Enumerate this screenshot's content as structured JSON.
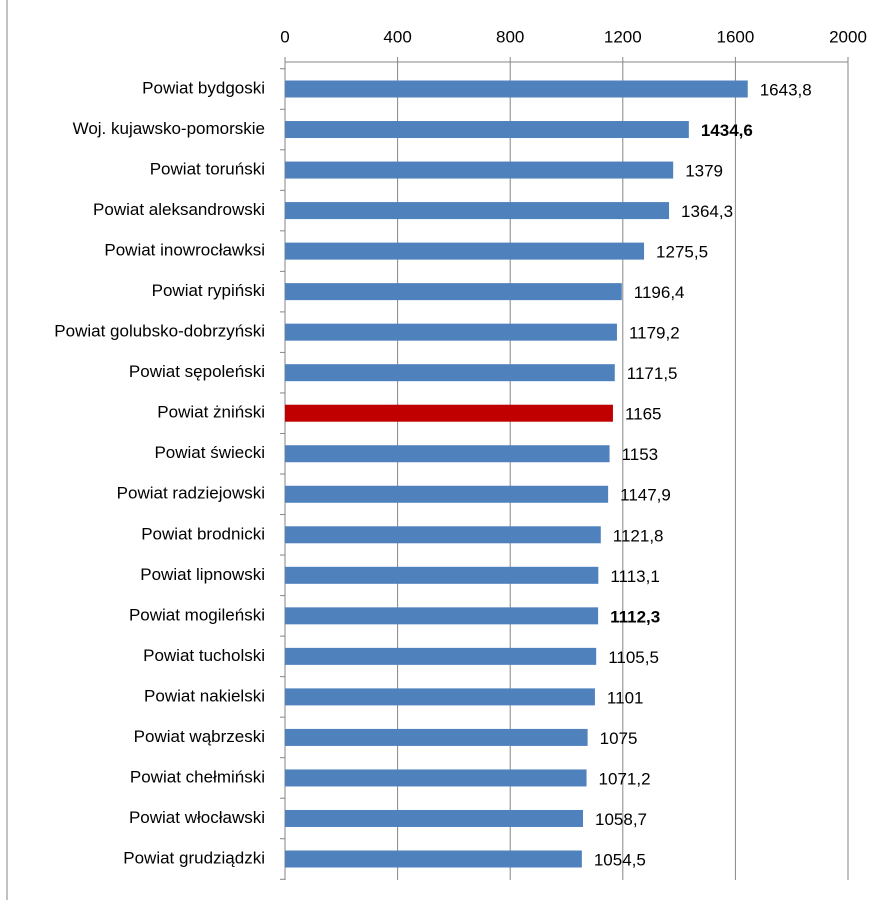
{
  "chart_data": {
    "type": "barh",
    "categories": [
      "Powiat bydgoski",
      "Woj. kujawsko-pomorskie",
      "Powiat toruński",
      "Powiat aleksandrowski",
      "Powiat inowrocławksi",
      "Powiat rypiński",
      "Powiat golubsko-dobrzyński",
      "Powiat sępoleński",
      "Powiat żniński",
      "Powiat świecki",
      "Powiat radziejowski",
      "Powiat brodnicki",
      "Powiat lipnowski",
      "Powiat mogileński",
      "Powiat tucholski",
      "Powiat nakielski",
      "Powiat wąbrzeski",
      "Powiat chełmiński",
      "Powiat włocławski",
      "Powiat grudziądzki"
    ],
    "values": [
      1643.8,
      1434.6,
      1379,
      1364.3,
      1275.5,
      1196.4,
      1179.2,
      1171.5,
      1165,
      1153,
      1147.9,
      1121.8,
      1113.1,
      1112.3,
      1105.5,
      1101,
      1075,
      1071.2,
      1058.7,
      1054.5
    ],
    "value_labels": [
      "1643,8",
      "1434,6",
      "1379",
      "1364,3",
      "1275,5",
      "1196,4",
      "1179,2",
      "1171,5",
      "1165",
      "1153",
      "1147,9",
      "1121,8",
      "1113,1",
      "1112,3",
      "1105,5",
      "1101",
      "1075",
      "1071,2",
      "1058,7",
      "1054,5"
    ],
    "value_label_bold": [
      false,
      true,
      false,
      false,
      false,
      false,
      false,
      false,
      false,
      false,
      false,
      false,
      false,
      true,
      false,
      false,
      false,
      false,
      false,
      false
    ],
    "colors": [
      "#4f81bd",
      "#4f81bd",
      "#4f81bd",
      "#4f81bd",
      "#4f81bd",
      "#4f81bd",
      "#4f81bd",
      "#4f81bd",
      "#c00000",
      "#4f81bd",
      "#4f81bd",
      "#4f81bd",
      "#4f81bd",
      "#4f81bd",
      "#4f81bd",
      "#4f81bd",
      "#4f81bd",
      "#4f81bd",
      "#4f81bd",
      "#4f81bd"
    ],
    "xlim": [
      0,
      2000
    ],
    "xticks": [
      0,
      400,
      800,
      1200,
      1600,
      2000
    ],
    "grid": true
  }
}
